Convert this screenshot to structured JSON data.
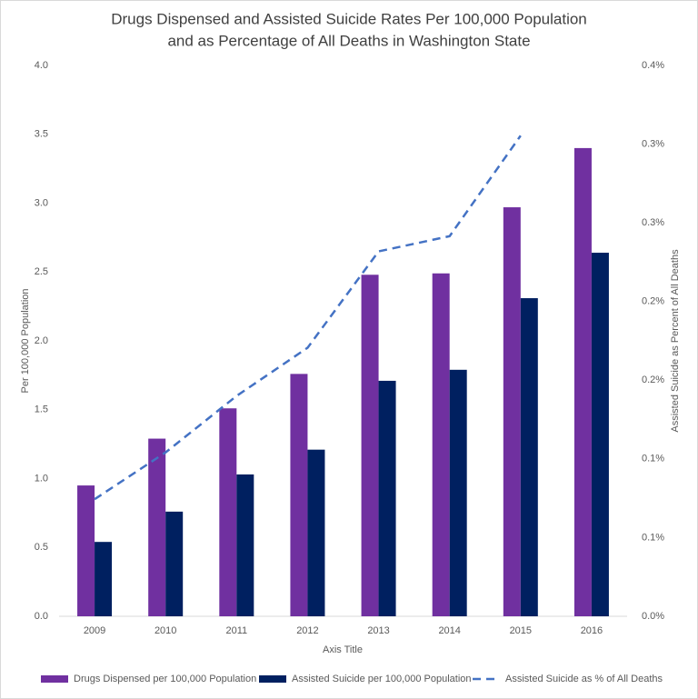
{
  "chart_data": {
    "type": "bar",
    "title": [
      "Drugs Dispensed and Assisted Suicide Rates Per 100,000 Population",
      "and as Percentage of All Deaths  in Washington State"
    ],
    "x_label": "Axis Title",
    "y_label": "Per 100,000 Population",
    "y2_label": "Assisted Suicide as  Percent of All Deaths",
    "categories": [
      "2009",
      "2010",
      "2011",
      "2012",
      "2013",
      "2014",
      "2015",
      "2016"
    ],
    "series": [
      {
        "name": "Drugs Dispensed per 100,000 Population",
        "type": "bar",
        "color": "#7030a0",
        "values": [
          0.95,
          1.29,
          1.51,
          1.76,
          2.48,
          2.49,
          2.97,
          3.4
        ]
      },
      {
        "name": "Assisted Suicide per 100,000 Population",
        "type": "bar",
        "color": "#002060",
        "values": [
          0.54,
          0.76,
          1.03,
          1.21,
          1.71,
          1.79,
          2.31,
          2.64
        ]
      },
      {
        "name": "Assisted Suicide as  % of All Deaths",
        "type": "line",
        "axis": "y2",
        "color": "#4472c4",
        "dashed": true,
        "values": [
          0.085,
          0.119,
          0.16,
          0.195,
          0.265,
          0.276,
          0.349,
          null
        ]
      }
    ],
    "ylim": [
      0,
      4
    ],
    "yticks": [
      {
        "value": 0,
        "label": "0.0"
      },
      {
        "value": 0.5,
        "label": "0.5"
      },
      {
        "value": 1,
        "label": "1.0"
      },
      {
        "value": 1.5,
        "label": "1.5"
      },
      {
        "value": 2,
        "label": "2.0"
      },
      {
        "value": 2.5,
        "label": "2.5"
      },
      {
        "value": 3,
        "label": "3.0"
      },
      {
        "value": 3.5,
        "label": "3.5"
      },
      {
        "value": 4,
        "label": "4.0"
      }
    ],
    "y2lim": [
      0,
      0.4
    ],
    "y2ticks": [
      {
        "value": 0,
        "label": "0.0%"
      },
      {
        "value": 0.0571,
        "label": "0.1%"
      },
      {
        "value": 0.1143,
        "label": "0.1%"
      },
      {
        "value": 0.1714,
        "label": "0.2%"
      },
      {
        "value": 0.2286,
        "label": "0.2%"
      },
      {
        "value": 0.2857,
        "label": "0.3%"
      },
      {
        "value": 0.3429,
        "label": "0.3%"
      },
      {
        "value": 0.4,
        "label": "0.4%"
      }
    ],
    "grid": false,
    "legend": "bottom"
  }
}
